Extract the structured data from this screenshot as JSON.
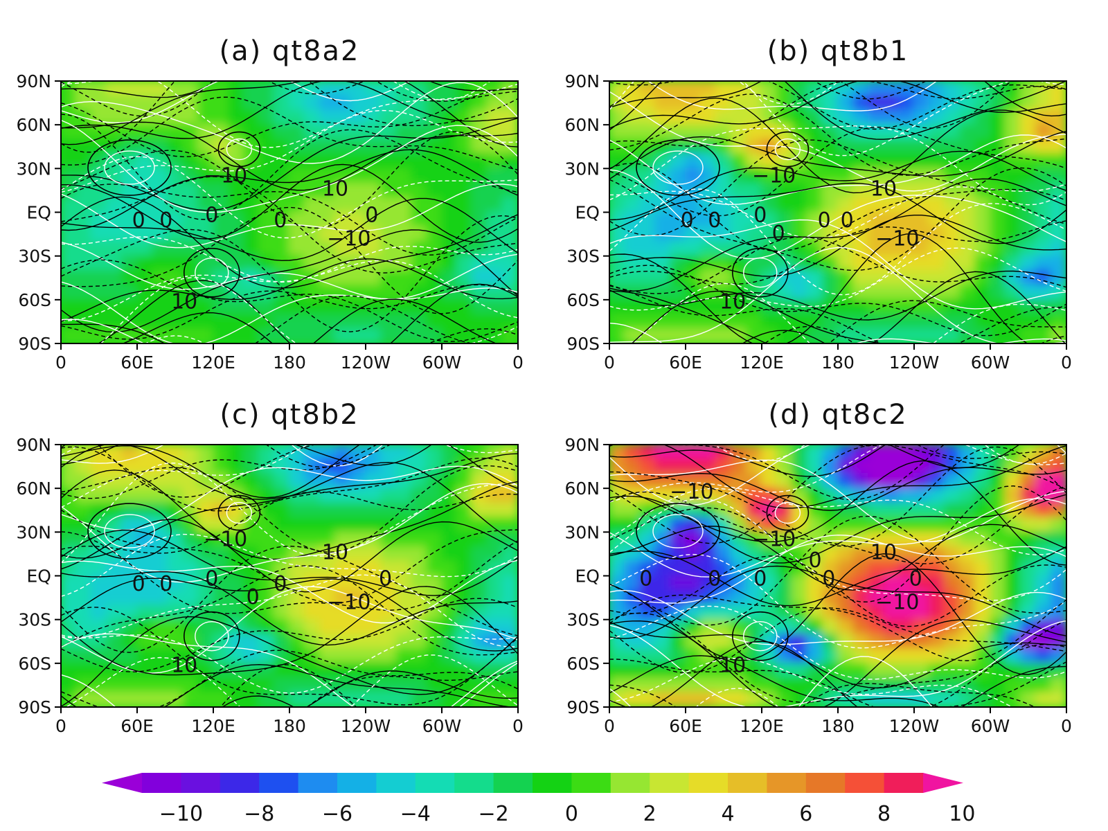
{
  "chart_data": {
    "type": "heatmap",
    "description_levels": "shaded anomaly field with colorbar levels from -10 to 10, overlaid with black and white line contours",
    "x_tick_labels": [
      "0",
      "60E",
      "120E",
      "180",
      "120W",
      "60W",
      "0"
    ],
    "y_tick_labels": [
      "90N",
      "60N",
      "30N",
      "EQ",
      "30S",
      "60S",
      "90S"
    ],
    "xlim": [
      0,
      360
    ],
    "ylim": [
      -90,
      90
    ],
    "panels": [
      {
        "title": "(a) qt8a2",
        "contour_labels": [
          "−10",
          "10",
          "0",
          "0",
          "0",
          "0",
          "0",
          "−10",
          "10"
        ]
      },
      {
        "title": "(b) qt8b1",
        "contour_labels": [
          "−10",
          "10",
          "0",
          "0",
          "0",
          "0",
          "0",
          "0",
          "−10",
          "10"
        ]
      },
      {
        "title": "(c) qt8b2",
        "contour_labels": [
          "−10",
          "10",
          "0",
          "0",
          "0",
          "0",
          "0",
          "0",
          "−10",
          "10"
        ]
      },
      {
        "title": "(d) qt8c2",
        "contour_labels": [
          "−10",
          "−10",
          "10",
          "0",
          "0",
          "0",
          "0",
          "0",
          "0",
          "−10",
          "10"
        ]
      }
    ],
    "colorbar": {
      "labels": [
        "−10",
        "−8",
        "−6",
        "−4",
        "−2",
        "0",
        "2",
        "4",
        "6",
        "8",
        "10"
      ],
      "colors": [
        "#9a00d8",
        "#8200dc",
        "#6a10e0",
        "#3c28e8",
        "#1e50f0",
        "#1e8cf0",
        "#14b0e6",
        "#14cdd2",
        "#14dcb4",
        "#14dc8c",
        "#14d250",
        "#14d214",
        "#3cdc14",
        "#96e632",
        "#c8e632",
        "#e6dc28",
        "#e6be28",
        "#e69628",
        "#e67828",
        "#f55037",
        "#f01e5a",
        "#f014a0"
      ],
      "extend": "both"
    }
  }
}
